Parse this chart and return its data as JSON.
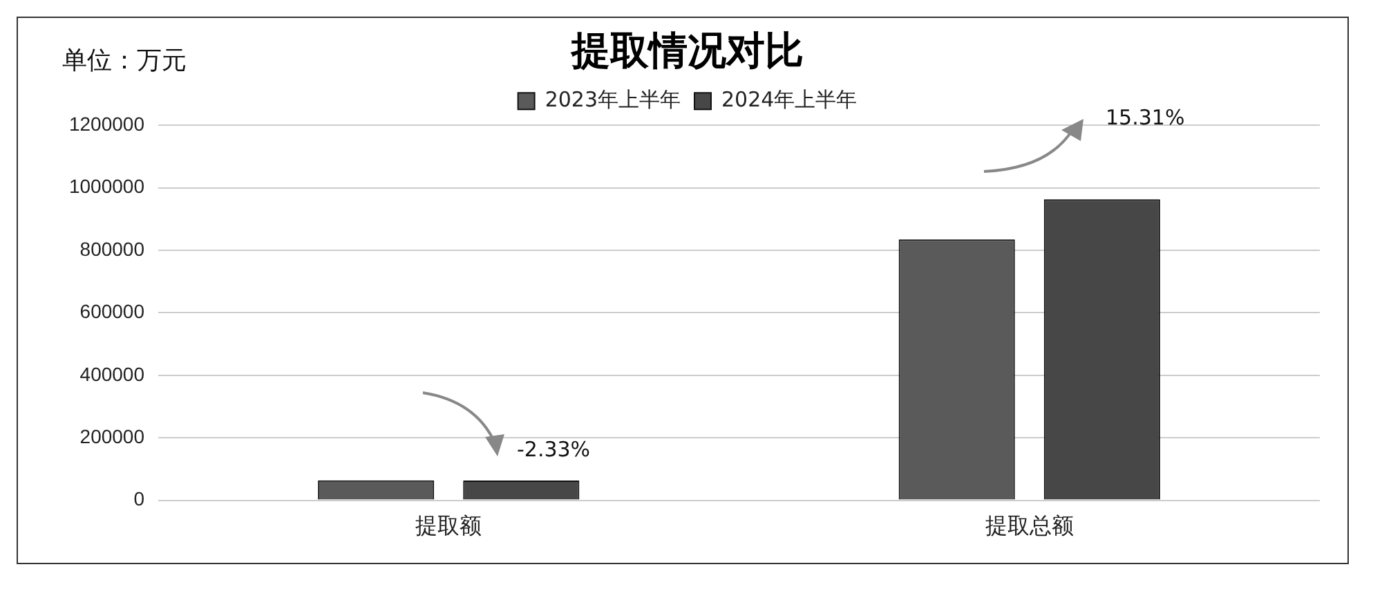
{
  "chart_data": {
    "type": "bar",
    "title": "提取情况对比",
    "categories": [
      "提取额",
      "提取总额"
    ],
    "series": [
      {
        "name": "2023年上半年",
        "color": "#5a5a5a",
        "values": [
          64000,
          835000
        ]
      },
      {
        "name": "2024年上半年",
        "color": "#474747",
        "values": [
          63000,
          963000
        ]
      }
    ],
    "ylim": [
      0,
      1200000
    ],
    "yticks": [
      0,
      200000,
      400000,
      600000,
      800000,
      1000000,
      1200000
    ],
    "grid": "y",
    "legend": "top",
    "annotations": [
      "单位：万元",
      "-2.33%",
      "15.31%"
    ]
  }
}
